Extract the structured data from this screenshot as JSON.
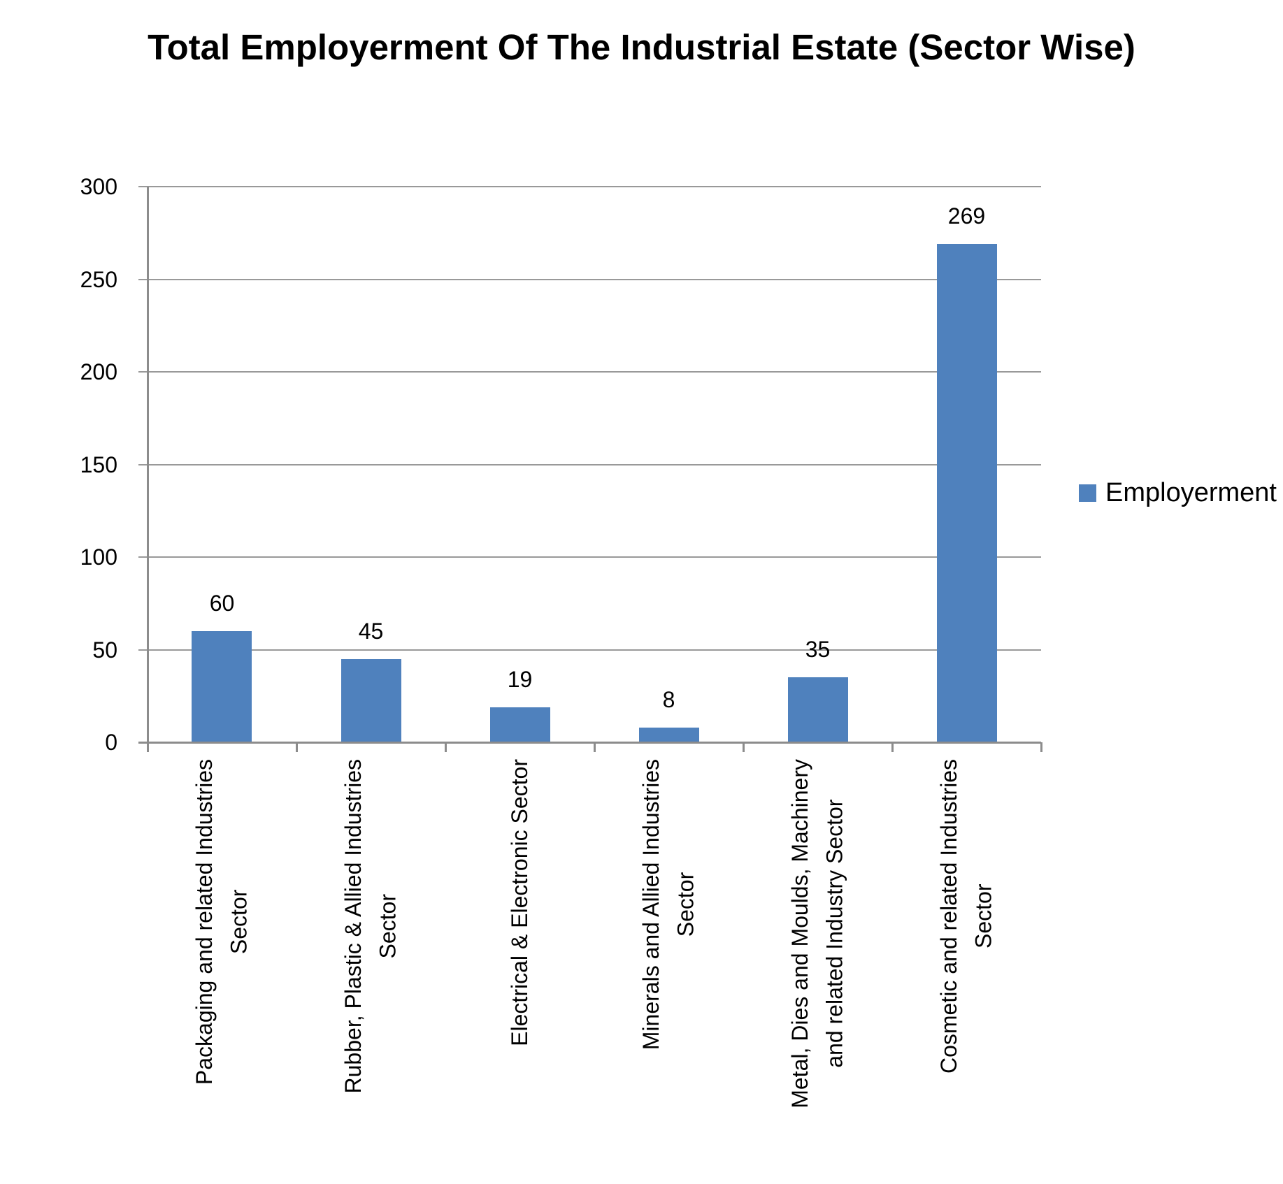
{
  "chart_data": {
    "type": "bar",
    "title": "Total Employerment Of The Industrial Estate (Sector Wise)",
    "categories": [
      [
        "Packaging and related Industries",
        "Sector"
      ],
      [
        "Rubber, Plastic & Allied Industries",
        "Sector"
      ],
      [
        "Electrical & Electronic Sector"
      ],
      [
        "Minerals and Allied Industries",
        "Sector"
      ],
      [
        "Metal, Dies and Moulds, Machinery",
        "and related Industry Sector"
      ],
      [
        "Cosmetic and related Industries",
        "Sector"
      ]
    ],
    "series": [
      {
        "name": "Employerment",
        "values": [
          60,
          45,
          19,
          8,
          35,
          269
        ]
      }
    ],
    "xlabel": "",
    "ylabel": "",
    "yticks": [
      0,
      50,
      100,
      150,
      200,
      250,
      300
    ],
    "ylim": [
      0,
      300
    ],
    "grid": "horizontal",
    "legend_position": "right",
    "data_labels_shown": true,
    "colors": {
      "bar": "#4F81BD",
      "gridline": "#999999",
      "axis": "#8C8C8C",
      "text": "#000000",
      "background": "#FFFFFF"
    }
  }
}
